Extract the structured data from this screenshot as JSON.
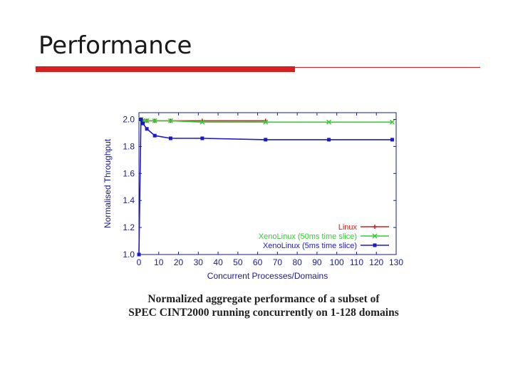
{
  "slide": {
    "title": "Performance"
  },
  "caption": {
    "line1": "Normalized aggregate performance of a subset of",
    "line2": "SPEC CINT2000 running concurrently on 1-128 domains"
  },
  "chart_data": {
    "type": "line",
    "xlabel": "Concurrent Processes/Domains",
    "ylabel": "Normalised Throughput",
    "xlim": [
      0,
      130
    ],
    "ylim": [
      1.0,
      2.05
    ],
    "xticks": [
      0,
      10,
      20,
      30,
      40,
      50,
      60,
      70,
      80,
      90,
      100,
      110,
      120,
      130
    ],
    "yticks": [
      1.0,
      1.2,
      1.4,
      1.6,
      1.8,
      2.0
    ],
    "legend_position": "bottom-right",
    "grid": false,
    "series": [
      {
        "name": "Linux",
        "color": "#d42020",
        "marker": "plus",
        "x": [
          1,
          2,
          4,
          8,
          16,
          32,
          64
        ],
        "y": [
          2.0,
          1.99,
          1.99,
          1.99,
          1.99,
          1.99,
          1.99
        ]
      },
      {
        "name": "XenoLinux (50ms time slice)",
        "color": "#33cc33",
        "marker": "x",
        "x": [
          1,
          2,
          4,
          8,
          16,
          32,
          64,
          96,
          128
        ],
        "y": [
          2.0,
          1.99,
          1.99,
          1.99,
          1.99,
          1.98,
          1.98,
          1.98,
          1.98
        ]
      },
      {
        "name": "XenoLinux (5ms time slice)",
        "color": "#1a1acc",
        "marker": "square",
        "x": [
          0,
          1,
          2,
          4,
          8,
          16,
          32,
          64,
          96,
          128
        ],
        "y": [
          1.0,
          2.0,
          1.97,
          1.93,
          1.88,
          1.86,
          1.86,
          1.85,
          1.85,
          1.85
        ]
      }
    ]
  }
}
